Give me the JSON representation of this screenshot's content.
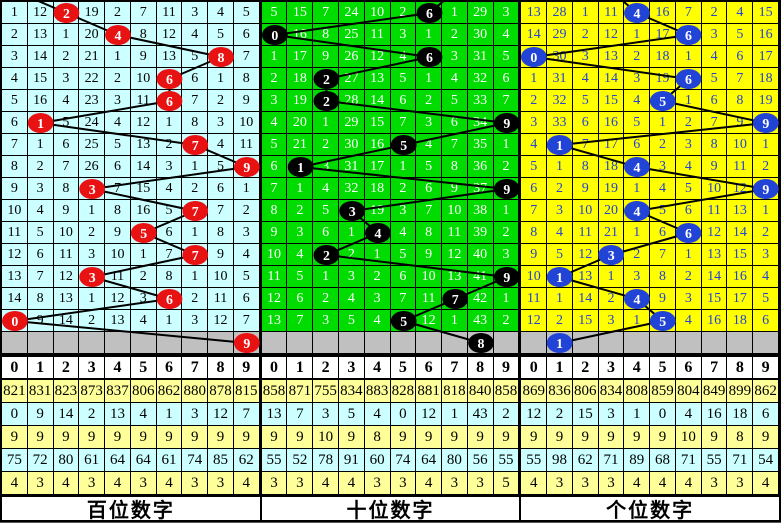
{
  "chart_data": {
    "type": "table",
    "title": "3D digit trend chart (miss-count grids with drawn-digit circles)",
    "gray_row_bg": "#C0C0C0",
    "stat_row_colors": [
      "#FFFF99",
      "#CCFFFF",
      "#FFFF99",
      "#CCFFFF",
      "#FFFF99"
    ],
    "line_color": "#000000",
    "panels": [
      {
        "id": "hundreds",
        "label": "百位数字",
        "colors": {
          "cell_bg": "#CCFFFF",
          "digit": "#000000",
          "circle": "#E81212",
          "circle_text": "#FFFFFF"
        },
        "header": [
          "0",
          "1",
          "2",
          "3",
          "4",
          "5",
          "6",
          "7",
          "8",
          "9"
        ],
        "entry_col": 0,
        "rows": [
          [
            1,
            12,
            2,
            19,
            2,
            7,
            11,
            3,
            4,
            5
          ],
          [
            2,
            13,
            1,
            20,
            4,
            8,
            12,
            4,
            5,
            6
          ],
          [
            3,
            14,
            2,
            21,
            1,
            9,
            13,
            5,
            8,
            7
          ],
          [
            4,
            15,
            3,
            22,
            2,
            10,
            6,
            6,
            1,
            8
          ],
          [
            5,
            16,
            4,
            23,
            3,
            11,
            6,
            7,
            2,
            9
          ],
          [
            6,
            1,
            5,
            24,
            4,
            12,
            1,
            8,
            3,
            10
          ],
          [
            7,
            1,
            6,
            25,
            5,
            13,
            2,
            7,
            4,
            11
          ],
          [
            8,
            2,
            7,
            26,
            6,
            14,
            3,
            1,
            5,
            9
          ],
          [
            9,
            3,
            8,
            3,
            7,
            15,
            4,
            2,
            6,
            1
          ],
          [
            10,
            4,
            9,
            1,
            8,
            16,
            5,
            7,
            7,
            2
          ],
          [
            11,
            5,
            10,
            2,
            9,
            5,
            6,
            1,
            8,
            3
          ],
          [
            12,
            6,
            11,
            3,
            10,
            1,
            7,
            7,
            9,
            4
          ],
          [
            13,
            7,
            12,
            3,
            11,
            2,
            8,
            1,
            10,
            5
          ],
          [
            14,
            8,
            13,
            1,
            12,
            3,
            6,
            2,
            11,
            6
          ],
          [
            0,
            9,
            14,
            2,
            13,
            4,
            1,
            3,
            12,
            7
          ]
        ],
        "draw_cols": [
          2,
          4,
          8,
          6,
          6,
          1,
          7,
          9,
          3,
          7,
          5,
          7,
          3,
          6,
          0
        ],
        "predicted_col": 9,
        "stats": [
          [
            821,
            831,
            823,
            873,
            837,
            806,
            862,
            880,
            878,
            815
          ],
          [
            0,
            9,
            14,
            2,
            13,
            4,
            1,
            3,
            12,
            7
          ],
          [
            9,
            9,
            9,
            9,
            9,
            9,
            9,
            9,
            9,
            9
          ],
          [
            75,
            72,
            80,
            61,
            64,
            64,
            61,
            74,
            85,
            62
          ],
          [
            4,
            3,
            4,
            3,
            4,
            3,
            4,
            3,
            3,
            4
          ]
        ]
      },
      {
        "id": "tens",
        "label": "十位数字",
        "colors": {
          "cell_bg": "#00DC00",
          "digit": "#FFFFFF",
          "circle": "#000000",
          "circle_text": "#FFFFFF"
        },
        "header": [
          "0",
          "1",
          "2",
          "3",
          "4",
          "5",
          "6",
          "7",
          "8",
          "9"
        ],
        "entry_col": 7,
        "rows": [
          [
            5,
            15,
            7,
            24,
            10,
            2,
            6,
            1,
            29,
            3
          ],
          [
            0,
            16,
            8,
            25,
            11,
            3,
            1,
            2,
            30,
            4
          ],
          [
            1,
            17,
            9,
            26,
            12,
            4,
            6,
            3,
            31,
            5
          ],
          [
            2,
            18,
            2,
            27,
            13,
            5,
            1,
            4,
            32,
            6
          ],
          [
            3,
            19,
            2,
            28,
            14,
            6,
            2,
            5,
            33,
            7
          ],
          [
            4,
            20,
            1,
            29,
            15,
            7,
            3,
            6,
            34,
            9
          ],
          [
            5,
            21,
            2,
            30,
            16,
            5,
            4,
            7,
            35,
            1
          ],
          [
            6,
            1,
            3,
            31,
            17,
            1,
            5,
            8,
            36,
            2
          ],
          [
            7,
            1,
            4,
            32,
            18,
            2,
            6,
            9,
            37,
            9
          ],
          [
            8,
            2,
            5,
            3,
            19,
            3,
            7,
            10,
            38,
            1
          ],
          [
            9,
            3,
            6,
            1,
            4,
            4,
            8,
            11,
            39,
            2
          ],
          [
            10,
            4,
            2,
            2,
            1,
            5,
            9,
            12,
            40,
            3
          ],
          [
            11,
            5,
            1,
            3,
            2,
            6,
            10,
            13,
            41,
            9
          ],
          [
            12,
            6,
            2,
            4,
            3,
            7,
            11,
            7,
            42,
            1
          ],
          [
            13,
            7,
            3,
            5,
            4,
            5,
            12,
            1,
            43,
            2
          ]
        ],
        "draw_cols": [
          6,
          0,
          6,
          2,
          2,
          9,
          5,
          1,
          9,
          3,
          4,
          2,
          9,
          7,
          5
        ],
        "predicted_col": 8,
        "stats": [
          [
            858,
            871,
            755,
            834,
            883,
            828,
            881,
            818,
            840,
            858
          ],
          [
            13,
            7,
            3,
            5,
            4,
            0,
            12,
            1,
            43,
            2
          ],
          [
            9,
            9,
            10,
            9,
            8,
            9,
            9,
            9,
            9,
            9
          ],
          [
            55,
            52,
            78,
            91,
            60,
            74,
            64,
            80,
            56,
            55
          ],
          [
            3,
            3,
            4,
            4,
            3,
            3,
            4,
            3,
            3,
            5
          ]
        ]
      },
      {
        "id": "ones",
        "label": "个位数字",
        "colors": {
          "cell_bg": "#FFFF00",
          "digit": "#2143D6",
          "circle": "#2143D6",
          "circle_text": "#FFFFFF"
        },
        "header": [
          "0",
          "1",
          "2",
          "3",
          "4",
          "5",
          "6",
          "7",
          "8",
          "9"
        ],
        "entry_col": 3,
        "rows": [
          [
            13,
            28,
            1,
            11,
            4,
            16,
            7,
            2,
            4,
            15
          ],
          [
            14,
            29,
            2,
            12,
            1,
            17,
            6,
            3,
            5,
            16
          ],
          [
            0,
            30,
            3,
            13,
            2,
            18,
            1,
            4,
            6,
            17
          ],
          [
            1,
            31,
            4,
            14,
            3,
            19,
            6,
            5,
            7,
            18
          ],
          [
            2,
            32,
            5,
            15,
            4,
            5,
            1,
            6,
            8,
            19
          ],
          [
            3,
            33,
            6,
            16,
            5,
            1,
            2,
            7,
            9,
            9
          ],
          [
            4,
            1,
            7,
            17,
            6,
            2,
            3,
            8,
            10,
            1
          ],
          [
            5,
            1,
            8,
            18,
            4,
            3,
            4,
            9,
            11,
            2
          ],
          [
            6,
            2,
            9,
            19,
            1,
            4,
            5,
            10,
            12,
            9
          ],
          [
            7,
            3,
            10,
            20,
            4,
            5,
            6,
            11,
            13,
            1
          ],
          [
            8,
            4,
            11,
            21,
            1,
            6,
            6,
            12,
            14,
            2
          ],
          [
            9,
            5,
            12,
            3,
            2,
            7,
            1,
            13,
            15,
            3
          ],
          [
            10,
            1,
            13,
            1,
            3,
            8,
            2,
            14,
            16,
            4
          ],
          [
            11,
            1,
            14,
            2,
            4,
            9,
            3,
            15,
            17,
            5
          ],
          [
            12,
            2,
            15,
            3,
            1,
            5,
            4,
            16,
            18,
            6
          ]
        ],
        "draw_cols": [
          4,
          6,
          0,
          6,
          5,
          9,
          1,
          4,
          9,
          4,
          6,
          3,
          1,
          4,
          5
        ],
        "predicted_col": 1,
        "stats": [
          [
            869,
            836,
            806,
            834,
            808,
            859,
            804,
            849,
            899,
            862
          ],
          [
            12,
            2,
            15,
            3,
            1,
            0,
            4,
            16,
            18,
            6
          ],
          [
            9,
            9,
            9,
            9,
            9,
            9,
            10,
            9,
            8,
            9
          ],
          [
            55,
            98,
            62,
            71,
            89,
            68,
            71,
            55,
            71,
            54
          ],
          [
            4,
            3,
            3,
            3,
            4,
            4,
            4,
            3,
            3,
            4
          ]
        ]
      }
    ]
  }
}
